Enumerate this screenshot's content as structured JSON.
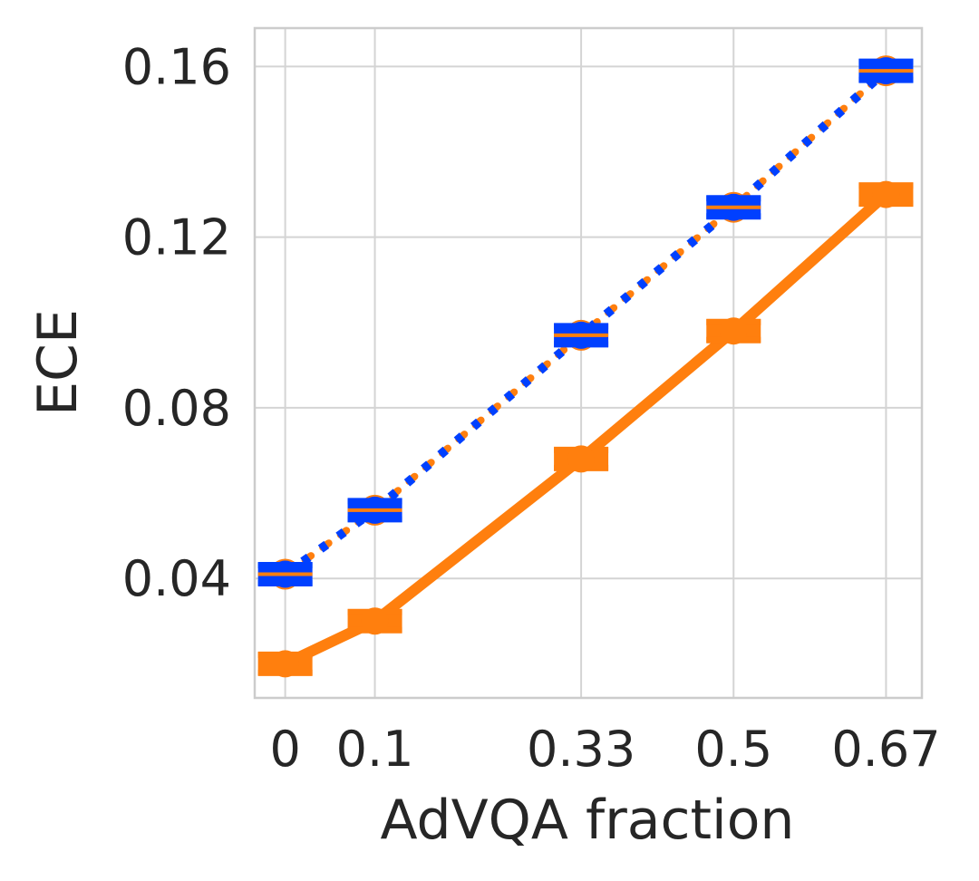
{
  "chart_data": {
    "type": "line",
    "xlabel": "AdVQA fraction",
    "ylabel": "ECE",
    "x": [
      0,
      0.1,
      0.33,
      0.5,
      0.67
    ],
    "x_ticks": [
      "0",
      "0.1",
      "0.33",
      "0.5",
      "0.67"
    ],
    "y_ticks": [
      "0.04",
      "0.08",
      "0.12",
      "0.16"
    ],
    "y_tick_values": [
      0.04,
      0.08,
      0.12,
      0.16
    ],
    "xlim": [
      -0.034,
      0.71
    ],
    "ylim": [
      0.012,
      0.169
    ],
    "grid": true,
    "series": [
      {
        "values": [
          0.041,
          0.056,
          0.097,
          0.127,
          0.159
        ],
        "color": "#0040ff",
        "line_style": "dotted",
        "underlay_color": "#ff7f0e",
        "marker": "circle-with-errorbar"
      },
      {
        "values": [
          0.02,
          0.03,
          0.068,
          0.098,
          0.13
        ],
        "color": "#ff7f0e",
        "line_style": "solid",
        "marker": "circle-with-errorbar"
      }
    ]
  }
}
